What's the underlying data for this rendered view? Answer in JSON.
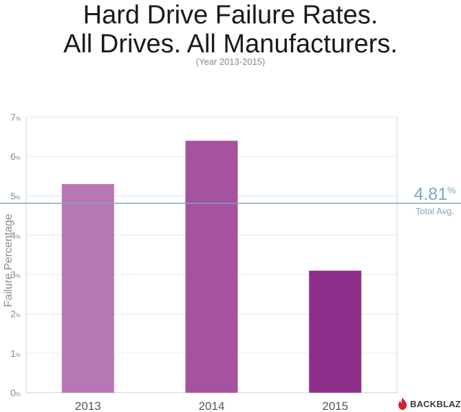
{
  "header": {
    "title_line1": "Hard Drive Failure Rates.",
    "title_line2": "All Drives. All Manufacturers.",
    "subtitle": "(Year 2013-2015)"
  },
  "chart_data": {
    "type": "bar",
    "title": "Hard Drive Failure Rates. All Drives. All Manufacturers.",
    "subtitle": "(Year 2013-2015)",
    "categories": [
      "2013",
      "2014",
      "2015"
    ],
    "values": [
      5.3,
      6.4,
      3.1
    ],
    "bar_colors": [
      "#b677b4",
      "#a5529f",
      "#8f2f8c"
    ],
    "xlabel": "",
    "ylabel": "Failure Percentage",
    "ylim": [
      0,
      7
    ],
    "yticks": [
      0,
      1,
      2,
      3,
      4,
      5,
      6,
      7
    ],
    "ytick_suffix": "%",
    "grid": true,
    "reference_line": {
      "value": 4.81,
      "value_label": "4.81",
      "suffix": "%",
      "label": "Total Avg.",
      "color": "#7fa6c2"
    }
  },
  "brand": {
    "logo_text": "BACKBLAZE",
    "logo_color": "#d3232d"
  }
}
